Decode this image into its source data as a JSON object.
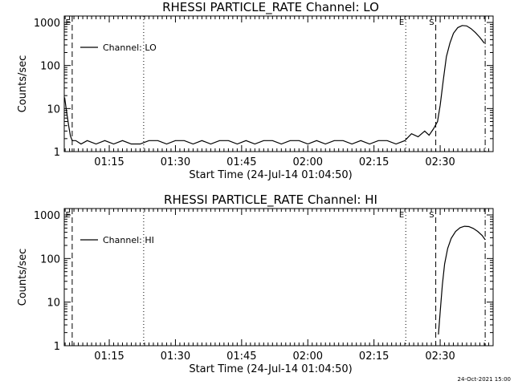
{
  "chart_data": [
    {
      "type": "line",
      "title": "RHESSI PARTICLE_RATE Channel: LO",
      "xlabel": "Start Time (24-Jul-14 01:04:50)",
      "ylabel": "Counts/sec",
      "yscale": "log",
      "ylim": [
        1,
        1000
      ],
      "xlim_minutes": [
        64.8,
        162
      ],
      "xticks": [
        "01:15",
        "01:30",
        "01:45",
        "02:00",
        "02:15",
        "02:30"
      ],
      "yticks": [
        "1",
        "10",
        "100",
        "1000"
      ],
      "legend": "Channel: LO",
      "legend_position": "top-left",
      "markers": [
        {
          "label": "E",
          "time": "01:06.6",
          "style": "dashed"
        },
        {
          "label": "",
          "time": "01:22.8",
          "style": "dotted"
        },
        {
          "label": "E",
          "time": "02:22.2",
          "style": "dotted"
        },
        {
          "label": "S",
          "time": "02:29.0",
          "style": "dashed"
        },
        {
          "label": "",
          "time": "02:40.2",
          "style": "dashdot"
        }
      ],
      "series": [
        {
          "name": "Channel: LO",
          "x": [
            "01:04.9",
            "01:05.3",
            "01:05.8",
            "01:06.2",
            "01:06.6",
            "01:07.4",
            "01:08.6",
            "01:10.0",
            "01:12.0",
            "01:14.0",
            "01:16.0",
            "01:18.0",
            "01:20.0",
            "01:22.0",
            "01:24.0",
            "01:26.0",
            "01:28.0",
            "01:30.0",
            "01:32.0",
            "01:34.0",
            "01:36.0",
            "01:38.0",
            "01:40.0",
            "01:42.0",
            "01:44.0",
            "01:46.0",
            "01:48.0",
            "01:50.0",
            "01:52.0",
            "01:54.0",
            "01:56.0",
            "01:58.0",
            "02:00.0",
            "02:02.0",
            "02:04.0",
            "02:06.0",
            "02:08.0",
            "02:10.0",
            "02:12.0",
            "02:14.0",
            "02:16.0",
            "02:18.0",
            "02:20.0",
            "02:22.0",
            "02:23.5",
            "02:25.0",
            "02:26.5",
            "02:27.5",
            "02:28.5",
            "02:29.4",
            "02:30.0",
            "02:30.7",
            "02:31.4",
            "02:32.2",
            "02:33.0",
            "02:34.0",
            "02:35.0",
            "02:36.0",
            "02:37.0",
            "02:38.0",
            "02:39.0",
            "02:40.0"
          ],
          "values": [
            18,
            9,
            4,
            2.3,
            1.8,
            1.8,
            1.5,
            1.8,
            1.5,
            1.8,
            1.5,
            1.8,
            1.5,
            1.5,
            1.8,
            1.8,
            1.5,
            1.8,
            1.8,
            1.5,
            1.8,
            1.5,
            1.8,
            1.8,
            1.5,
            1.8,
            1.5,
            1.8,
            1.8,
            1.5,
            1.8,
            1.8,
            1.5,
            1.8,
            1.5,
            1.8,
            1.8,
            1.5,
            1.8,
            1.5,
            1.8,
            1.8,
            1.5,
            1.8,
            2.6,
            2.2,
            3,
            2.4,
            3.4,
            5,
            12,
            45,
            160,
            330,
            560,
            760,
            850,
            830,
            720,
            580,
            450,
            330
          ]
        }
      ]
    },
    {
      "type": "line",
      "title": "RHESSI PARTICLE_RATE Channel: HI",
      "xlabel": "Start Time (24-Jul-14 01:04:50)",
      "ylabel": "Counts/sec",
      "yscale": "log",
      "ylim": [
        1,
        1000
      ],
      "xlim_minutes": [
        64.8,
        162
      ],
      "xticks": [
        "01:15",
        "01:30",
        "01:45",
        "02:00",
        "02:15",
        "02:30"
      ],
      "yticks": [
        "1",
        "10",
        "100",
        "1000"
      ],
      "legend": "Channel: HI",
      "legend_position": "top-left",
      "markers": [
        {
          "label": "E",
          "time": "01:06.6",
          "style": "dashed"
        },
        {
          "label": "",
          "time": "01:22.8",
          "style": "dotted"
        },
        {
          "label": "E",
          "time": "02:22.2",
          "style": "dotted"
        },
        {
          "label": "S",
          "time": "02:29.0",
          "style": "dashed"
        },
        {
          "label": "",
          "time": "02:40.2",
          "style": "dashdot"
        }
      ],
      "series": [
        {
          "name": "Channel: HI",
          "x": [
            "02:29.6",
            "02:30.0",
            "02:30.5",
            "02:31.0",
            "02:31.7",
            "02:32.5",
            "02:33.5",
            "02:34.5",
            "02:35.5",
            "02:36.5",
            "02:37.5",
            "02:38.5",
            "02:39.5",
            "02:40.2"
          ],
          "values": [
            1.8,
            6,
            25,
            75,
            170,
            290,
            420,
            510,
            550,
            540,
            490,
            420,
            340,
            270
          ]
        }
      ]
    }
  ],
  "footer": {
    "timestamp": "24-Oct-2021 15:00"
  }
}
